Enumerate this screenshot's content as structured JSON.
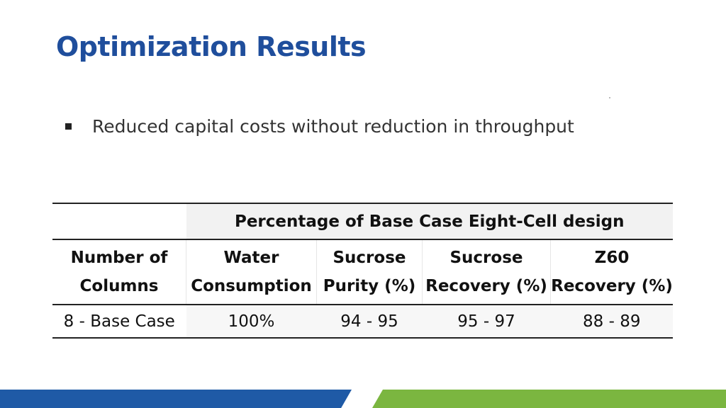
{
  "slide": {
    "title": "Optimization Results",
    "bullet": "Reduced capital costs without reduction in throughput"
  },
  "table": {
    "span_header": "Percentage of Base Case Eight-Cell design",
    "columns": [
      [
        "Number of",
        "Columns"
      ],
      [
        "Water",
        "Consumption"
      ],
      [
        "Sucrose",
        "Purity (%)"
      ],
      [
        "Sucrose",
        "Recovery (%)"
      ],
      [
        "Z60",
        "Recovery (%)"
      ]
    ],
    "rows": [
      [
        "8 - Base Case",
        "100%",
        "94 - 95",
        "95 - 97",
        "88 - 89"
      ]
    ]
  },
  "colors": {
    "title": "#1f4e9c",
    "band_blue": "#1f5aa6",
    "band_green": "#7bb640"
  }
}
